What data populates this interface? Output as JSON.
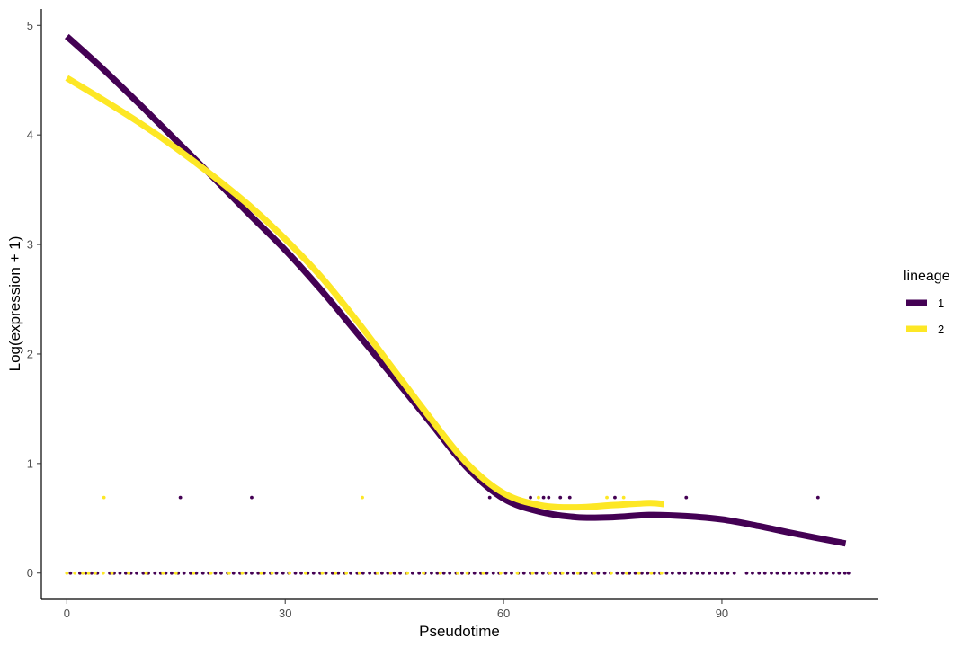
{
  "chart_data": {
    "type": "scatter",
    "xlabel": "Pseudotime",
    "ylabel": "Log(expression + 1)",
    "xlim": [
      -3.5,
      111.5
    ],
    "ylim": [
      -0.24,
      5.15
    ],
    "x_ticks": [
      0,
      30,
      60,
      90
    ],
    "y_ticks": [
      0,
      1,
      2,
      3,
      4,
      5
    ],
    "grid": false,
    "legend": {
      "title": "lineage",
      "position": "right"
    },
    "colors": {
      "1": "#440154",
      "2": "#FDE725"
    },
    "series": [
      {
        "name": "1",
        "color": "#440154",
        "smooth_curve": {
          "x": [
            0,
            5,
            10,
            15,
            20,
            25,
            30,
            35,
            40,
            45,
            50,
            55,
            60,
            65,
            70,
            75,
            80,
            85,
            90,
            95,
            100,
            107
          ],
          "y": [
            4.9,
            4.6,
            4.28,
            3.95,
            3.62,
            3.28,
            2.95,
            2.58,
            2.18,
            1.78,
            1.37,
            0.96,
            0.68,
            0.56,
            0.51,
            0.51,
            0.53,
            0.52,
            0.49,
            0.43,
            0.36,
            0.27
          ]
        },
        "points_nonzero_x": [
          15.6,
          25.4,
          58.1,
          63.7,
          65.5,
          66.2,
          67.8,
          69.1,
          75.3,
          85.1,
          103.2
        ],
        "points_nonzero_y": 0.69,
        "points_zero_x": [
          0.5,
          1.8,
          2.6,
          3.4,
          4.2,
          5.9,
          6.5,
          7.3,
          8.1,
          8.8,
          9.6,
          10.5,
          11.2,
          12.1,
          12.9,
          13.6,
          14.4,
          15.3,
          16.1,
          17.0,
          17.8,
          18.7,
          19.5,
          20.4,
          21.2,
          22.1,
          22.9,
          23.8,
          24.6,
          25.4,
          26.3,
          27.1,
          28.0,
          28.8,
          29.7,
          30.5,
          31.4,
          32.2,
          33.1,
          33.9,
          34.8,
          35.6,
          36.5,
          37.3,
          38.2,
          39.0,
          39.9,
          40.7,
          41.6,
          42.4,
          43.3,
          44.1,
          45.0,
          45.8,
          46.7,
          47.5,
          48.4,
          49.2,
          50.1,
          50.9,
          51.8,
          52.6,
          53.5,
          54.3,
          55.2,
          56.0,
          56.9,
          57.7,
          58.6,
          59.4,
          60.3,
          61.1,
          62.0,
          62.8,
          63.7,
          64.5,
          65.4,
          66.2,
          67.1,
          67.9,
          68.8,
          69.6,
          70.5,
          71.3,
          72.2,
          73.0,
          73.9,
          74.7,
          75.6,
          76.4,
          77.3,
          78.1,
          79.0,
          79.8,
          80.7,
          81.5,
          82.4,
          83.2,
          84.1,
          84.9,
          85.8,
          86.6,
          87.4,
          88.3,
          89.1,
          90.0,
          90.8,
          91.7,
          93.4,
          94.2,
          95.1,
          95.9,
          96.8,
          97.6,
          98.5,
          99.3,
          100.2,
          101.0,
          101.9,
          102.7,
          103.6,
          104.4,
          105.3,
          106.1,
          106.9,
          107.4
        ],
        "points_zero_y": 0
      },
      {
        "name": "2",
        "color": "#FDE725",
        "smooth_curve": {
          "x": [
            0,
            5,
            10,
            15,
            20,
            25,
            30,
            35,
            40,
            45,
            50,
            55,
            60,
            65,
            70,
            75,
            80,
            82
          ],
          "y": [
            4.52,
            4.32,
            4.11,
            3.88,
            3.63,
            3.36,
            3.05,
            2.7,
            2.29,
            1.85,
            1.41,
            1.0,
            0.73,
            0.62,
            0.6,
            0.62,
            0.64,
            0.63
          ]
        },
        "points_nonzero_x": [
          5.1,
          40.6,
          64.8,
          74.2,
          76.5
        ],
        "points_nonzero_y": 0.69,
        "points_zero_x": [
          0.0,
          1.1,
          2.2,
          3.0,
          3.9,
          5.0,
          6.2,
          8.5,
          10.9,
          13.2,
          15.0,
          17.4,
          19.8,
          22.3,
          24.1,
          26.7,
          28.2,
          30.6,
          32.8,
          35.1,
          36.9,
          38.4,
          40.2,
          42.7,
          44.5,
          46.8,
          49.0,
          51.3,
          53.7,
          55.0,
          57.2,
          59.6,
          61.9,
          64.0,
          66.4,
          68.1,
          70.2,
          72.5,
          74.8,
          76.9,
          78.6,
          80.3,
          81.7
        ],
        "points_zero_y": 0
      }
    ]
  }
}
